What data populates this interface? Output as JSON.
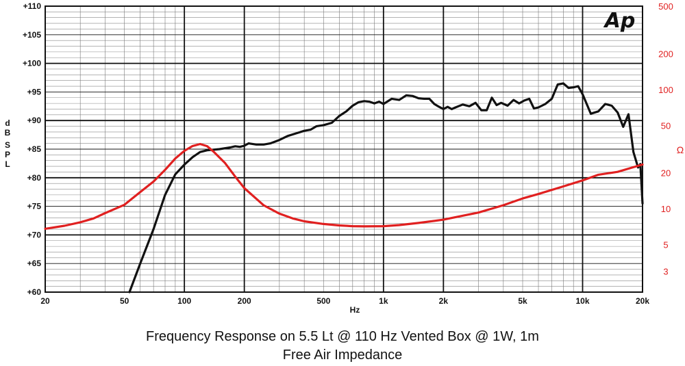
{
  "chart_data": {
    "type": "line",
    "title": "Frequency Response on 5.5 Lt @ 110 Hz Vented Box @ 1W, 1m",
    "subtitle": "Free Air Impedance",
    "xlabel": "Hz",
    "ylabel": "dB SPL",
    "y2label": "Ω",
    "logo": "Ap",
    "x_scale": "log",
    "xlim": [
      20,
      20000
    ],
    "ylim": [
      60,
      110
    ],
    "y2lim": [
      2,
      500
    ],
    "y2_scale": "log",
    "grid": true,
    "x_ticks": [
      {
        "value": 20,
        "label": "20"
      },
      {
        "value": 50,
        "label": "50"
      },
      {
        "value": 100,
        "label": "100"
      },
      {
        "value": 200,
        "label": "200"
      },
      {
        "value": 500,
        "label": "500"
      },
      {
        "value": 1000,
        "label": "1k"
      },
      {
        "value": 2000,
        "label": "2k"
      },
      {
        "value": 5000,
        "label": "5k"
      },
      {
        "value": 10000,
        "label": "10k"
      },
      {
        "value": 20000,
        "label": "20k"
      }
    ],
    "y_ticks": [
      {
        "value": 110,
        "label": "+110"
      },
      {
        "value": 105,
        "label": "+105"
      },
      {
        "value": 100,
        "label": "+100"
      },
      {
        "value": 95,
        "label": "+95"
      },
      {
        "value": 90,
        "label": "+90"
      },
      {
        "value": 85,
        "label": "+85"
      },
      {
        "value": 80,
        "label": "+80"
      },
      {
        "value": 75,
        "label": "+75"
      },
      {
        "value": 70,
        "label": "+70"
      },
      {
        "value": 65,
        "label": "+65"
      },
      {
        "value": 60,
        "label": "+60"
      }
    ],
    "y2_ticks": [
      {
        "value": 500,
        "label": "500"
      },
      {
        "value": 200,
        "label": "200"
      },
      {
        "value": 100,
        "label": "100"
      },
      {
        "value": 50,
        "label": "50"
      },
      {
        "value": 20,
        "label": "20"
      },
      {
        "value": 10,
        "label": "10"
      },
      {
        "value": 5,
        "label": "5"
      },
      {
        "value": 3,
        "label": "3"
      }
    ],
    "series": [
      {
        "axis": "left",
        "color": "#111111",
        "points": [
          [
            53,
            60
          ],
          [
            60,
            65
          ],
          [
            70,
            71
          ],
          [
            80,
            77
          ],
          [
            90,
            80.6
          ],
          [
            100,
            82.3
          ],
          [
            110,
            83.6
          ],
          [
            120,
            84.5
          ],
          [
            130,
            84.8
          ],
          [
            150,
            85
          ],
          [
            170,
            85.3
          ],
          [
            180,
            85.5
          ],
          [
            190,
            85.4
          ],
          [
            200,
            85.6
          ],
          [
            210,
            86
          ],
          [
            230,
            85.8
          ],
          [
            250,
            85.8
          ],
          [
            270,
            86
          ],
          [
            300,
            86.6
          ],
          [
            330,
            87.3
          ],
          [
            360,
            87.7
          ],
          [
            400,
            88.2
          ],
          [
            430,
            88.4
          ],
          [
            460,
            89
          ],
          [
            500,
            89.2
          ],
          [
            550,
            89.6
          ],
          [
            600,
            90.8
          ],
          [
            650,
            91.6
          ],
          [
            700,
            92.6
          ],
          [
            750,
            93.2
          ],
          [
            800,
            93.4
          ],
          [
            850,
            93.3
          ],
          [
            900,
            93
          ],
          [
            950,
            93.3
          ],
          [
            1000,
            92.9
          ],
          [
            1100,
            93.8
          ],
          [
            1200,
            93.6
          ],
          [
            1300,
            94.4
          ],
          [
            1400,
            94.3
          ],
          [
            1500,
            93.9
          ],
          [
            1600,
            93.8
          ],
          [
            1700,
            93.8
          ],
          [
            1800,
            92.9
          ],
          [
            1900,
            92.4
          ],
          [
            2000,
            92
          ],
          [
            2100,
            92.4
          ],
          [
            2200,
            92
          ],
          [
            2300,
            92.3
          ],
          [
            2500,
            92.8
          ],
          [
            2700,
            92.5
          ],
          [
            2900,
            93.1
          ],
          [
            3100,
            91.8
          ],
          [
            3300,
            91.8
          ],
          [
            3500,
            94
          ],
          [
            3700,
            92.7
          ],
          [
            3900,
            93.1
          ],
          [
            4200,
            92.6
          ],
          [
            4500,
            93.6
          ],
          [
            4800,
            93
          ],
          [
            5100,
            93.5
          ],
          [
            5400,
            93.8
          ],
          [
            5700,
            92.1
          ],
          [
            6000,
            92.3
          ],
          [
            6500,
            92.9
          ],
          [
            7000,
            93.8
          ],
          [
            7500,
            96.3
          ],
          [
            8000,
            96.5
          ],
          [
            8500,
            95.7
          ],
          [
            9000,
            95.8
          ],
          [
            9500,
            96
          ],
          [
            10000,
            94.6
          ],
          [
            11000,
            91.2
          ],
          [
            12000,
            91.6
          ],
          [
            13000,
            92.9
          ],
          [
            14000,
            92.6
          ],
          [
            15000,
            91.4
          ],
          [
            16000,
            88.9
          ],
          [
            17000,
            91.1
          ],
          [
            18000,
            84.5
          ],
          [
            19000,
            81.8
          ],
          [
            19500,
            82.4
          ],
          [
            20000,
            75.5
          ]
        ]
      },
      {
        "axis": "right",
        "color": "#e02020",
        "points": [
          [
            20,
            6.8
          ],
          [
            25,
            7.2
          ],
          [
            30,
            7.7
          ],
          [
            35,
            8.3
          ],
          [
            40,
            9.2
          ],
          [
            50,
            10.8
          ],
          [
            60,
            13.8
          ],
          [
            70,
            16.9
          ],
          [
            80,
            21.2
          ],
          [
            90,
            26.4
          ],
          [
            100,
            30.6
          ],
          [
            110,
            33.6
          ],
          [
            120,
            34.9
          ],
          [
            130,
            33.5
          ],
          [
            140,
            30.2
          ],
          [
            160,
            24.2
          ],
          [
            180,
            18.6
          ],
          [
            200,
            14.9
          ],
          [
            250,
            10.7
          ],
          [
            300,
            9.1
          ],
          [
            350,
            8.3
          ],
          [
            400,
            7.85
          ],
          [
            500,
            7.45
          ],
          [
            600,
            7.25
          ],
          [
            700,
            7.15
          ],
          [
            800,
            7.12
          ],
          [
            1000,
            7.15
          ],
          [
            1200,
            7.3
          ],
          [
            1500,
            7.6
          ],
          [
            2000,
            8.1
          ],
          [
            3000,
            9.3
          ],
          [
            4000,
            10.7
          ],
          [
            5000,
            12.2
          ],
          [
            6000,
            13.3
          ],
          [
            8000,
            15.4
          ],
          [
            10000,
            17.3
          ],
          [
            12000,
            19.3
          ],
          [
            15000,
            20.4
          ],
          [
            18000,
            22.3
          ],
          [
            20000,
            23.5
          ]
        ]
      }
    ]
  }
}
